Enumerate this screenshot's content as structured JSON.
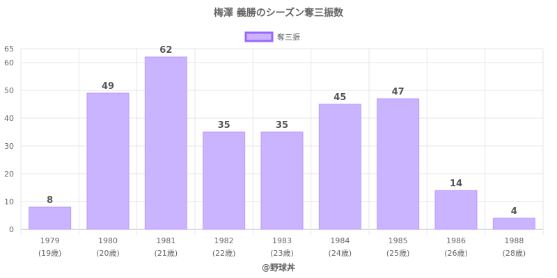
{
  "chart_data": {
    "type": "bar",
    "title": "梅澤 義勝のシーズン奪三振数",
    "legend": {
      "position": "top",
      "entries": [
        "奪三振"
      ]
    },
    "categories": [
      "1979",
      "1980",
      "1981",
      "1982",
      "1983",
      "1984",
      "1985",
      "1986",
      "1988"
    ],
    "sublabels": [
      "(19歳)",
      "(20歳)",
      "(21歳)",
      "(22歳)",
      "(23歳)",
      "(24歳)",
      "(25歳)",
      "(26歳)",
      "(28歳)"
    ],
    "series": [
      {
        "name": "奪三振",
        "values": [
          8,
          49,
          62,
          35,
          35,
          45,
          47,
          14,
          4
        ]
      }
    ],
    "ylim": [
      0,
      65
    ],
    "yticks": [
      0,
      10,
      20,
      30,
      40,
      50,
      60,
      65
    ],
    "grid": true,
    "colors": {
      "bar_fill": "#cbb4ff",
      "bar_stroke": "#b999ff",
      "legend_stroke": "#9966ff"
    }
  },
  "footer": "@野球丼"
}
